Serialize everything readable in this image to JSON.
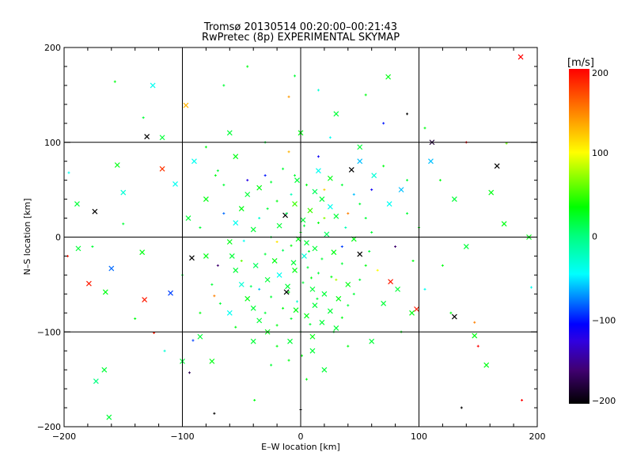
{
  "chart_data": {
    "type": "scatter",
    "title": "Tromsø 20130514 00:20:00–00:21:43",
    "subtitle": "RwPretec (8p) EXPERIMENTAL SKYMAP",
    "xlabel": "E–W location [km]",
    "ylabel": "N–S location [km]",
    "xlim": [
      -200,
      200
    ],
    "ylim": [
      -200,
      200
    ],
    "xticks": [
      -200,
      -100,
      0,
      100,
      200
    ],
    "yticks": [
      -200,
      -100,
      0,
      100,
      200
    ],
    "xtick_labels": [
      "−200",
      "−100",
      "0",
      "100",
      "200"
    ],
    "ytick_labels": [
      "−200",
      "−100",
      "0",
      "100",
      "200"
    ],
    "grid": true,
    "colorbar": {
      "label": "[m/s]",
      "range": [
        -200,
        200
      ],
      "ticks": [
        200,
        100,
        0,
        -100,
        -200
      ],
      "tick_labels": [
        "200",
        "100",
        "0",
        "−100",
        "−200"
      ],
      "colormap": [
        [
          -200,
          "#000000"
        ],
        [
          -160,
          "#400070"
        ],
        [
          -125,
          "#3000e0"
        ],
        [
          -105,
          "#0000ff"
        ],
        [
          -75,
          "#0080ff"
        ],
        [
          -45,
          "#00ffff"
        ],
        [
          0,
          "#00ff80"
        ],
        [
          35,
          "#00ff00"
        ],
        [
          100,
          "#ffff00"
        ],
        [
          150,
          "#ff8000"
        ],
        [
          200,
          "#ff0000"
        ]
      ]
    },
    "marker_legend": {
      "0": "small plus",
      "1": "cross"
    },
    "point_fields": [
      "x_km",
      "y_km",
      "velocity_ms",
      "marker"
    ],
    "points": [
      [
        186,
        190,
        200,
        1
      ],
      [
        -130,
        106,
        -200,
        1
      ],
      [
        -117,
        72,
        180,
        1
      ],
      [
        -174,
        27,
        -200,
        1
      ],
      [
        -92,
        -22,
        -200,
        1
      ],
      [
        -179,
        -49,
        190,
        1
      ],
      [
        -132,
        -66,
        190,
        1
      ],
      [
        -110,
        -59,
        -90,
        1
      ],
      [
        -91,
        -109,
        -90,
        0
      ],
      [
        130,
        -84,
        -200,
        1
      ],
      [
        166,
        75,
        -200,
        1
      ],
      [
        187,
        -172,
        200,
        0
      ],
      [
        150,
        -115,
        200,
        0
      ],
      [
        76,
        -47,
        190,
        1
      ],
      [
        98,
        -76,
        190,
        1
      ],
      [
        43,
        71,
        -200,
        1
      ],
      [
        -13,
        23,
        -200,
        1
      ],
      [
        -12,
        -58,
        -200,
        1
      ],
      [
        50,
        -18,
        -200,
        1
      ],
      [
        0,
        -182,
        -200,
        0
      ],
      [
        136,
        -180,
        -200,
        0
      ],
      [
        -162,
        -190,
        20,
        1
      ],
      [
        -166,
        -140,
        20,
        1
      ],
      [
        -173,
        -152,
        0,
        1
      ],
      [
        74,
        169,
        30,
        1
      ],
      [
        -117,
        105,
        20,
        1
      ],
      [
        -97,
        139,
        130,
        1
      ],
      [
        111,
        100,
        -180,
        1
      ],
      [
        174,
        99,
        60,
        0
      ],
      [
        193,
        0,
        30,
        1
      ],
      [
        -196,
        68,
        -40,
        0
      ],
      [
        -197,
        -20,
        190,
        0
      ],
      [
        -124,
        -101,
        190,
        0
      ],
      [
        -189,
        35,
        20,
        1
      ],
      [
        -155,
        76,
        30,
        1
      ],
      [
        -150,
        47,
        -30,
        1
      ],
      [
        -150,
        14,
        20,
        0
      ],
      [
        -134,
        -16,
        30,
        1
      ],
      [
        -106,
        56,
        -40,
        1
      ],
      [
        -73,
        -62,
        150,
        0
      ],
      [
        -75,
        -131,
        30,
        1
      ],
      [
        -100,
        -131,
        20,
        1
      ],
      [
        -39,
        -172,
        30,
        0
      ],
      [
        -94,
        -143,
        -170,
        0
      ],
      [
        -73,
        -186,
        -200,
        0
      ],
      [
        147,
        -104,
        30,
        1
      ],
      [
        157,
        -135,
        30,
        1
      ],
      [
        161,
        47,
        30,
        1
      ],
      [
        172,
        14,
        30,
        1
      ],
      [
        195,
        -53,
        -40,
        0
      ],
      [
        127,
        -80,
        30,
        0
      ],
      [
        94,
        -80,
        30,
        1
      ],
      [
        147,
        -90,
        150,
        0
      ],
      [
        -188,
        -12,
        20,
        1
      ],
      [
        -160,
        -33,
        -80,
        1
      ],
      [
        -176,
        -10,
        20,
        0
      ],
      [
        -165,
        -58,
        30,
        1
      ],
      [
        -140,
        -86,
        30,
        0
      ],
      [
        -115,
        -120,
        -30,
        0
      ],
      [
        -85,
        -105,
        20,
        1
      ],
      [
        -157,
        164,
        30,
        0
      ],
      [
        -133,
        126,
        20,
        0
      ],
      [
        -125,
        160,
        -40,
        1
      ],
      [
        -65,
        160,
        20,
        0
      ],
      [
        -45,
        180,
        30,
        0
      ],
      [
        -10,
        148,
        140,
        0
      ],
      [
        15,
        155,
        -30,
        0
      ],
      [
        30,
        130,
        20,
        1
      ],
      [
        55,
        150,
        30,
        0
      ],
      [
        70,
        120,
        -100,
        0
      ],
      [
        90,
        130,
        -200,
        0
      ],
      [
        105,
        115,
        30,
        0
      ],
      [
        140,
        100,
        200,
        0
      ],
      [
        -60,
        110,
        20,
        1
      ],
      [
        -80,
        95,
        30,
        0
      ],
      [
        -90,
        80,
        -40,
        1
      ],
      [
        -70,
        70,
        20,
        0
      ],
      [
        118,
        60,
        30,
        0
      ],
      [
        130,
        40,
        20,
        1
      ],
      [
        110,
        80,
        -60,
        1
      ],
      [
        100,
        10,
        30,
        0
      ],
      [
        140,
        -10,
        20,
        1
      ],
      [
        120,
        -30,
        30,
        0
      ],
      [
        105,
        -55,
        -40,
        0
      ],
      [
        85,
        -100,
        30,
        0
      ],
      [
        60,
        -110,
        20,
        1
      ],
      [
        40,
        -115,
        30,
        0
      ],
      [
        10,
        -120,
        20,
        1
      ],
      [
        -20,
        -115,
        30,
        0
      ],
      [
        -40,
        -110,
        20,
        1
      ],
      [
        -55,
        -95,
        30,
        0
      ],
      [
        -60,
        -80,
        -40,
        1
      ],
      [
        -75,
        -50,
        20,
        0
      ],
      [
        -80,
        -20,
        30,
        1
      ],
      [
        -85,
        10,
        20,
        0
      ],
      [
        -80,
        40,
        30,
        1
      ],
      [
        -65,
        55,
        20,
        0
      ],
      [
        -55,
        85,
        30,
        1
      ],
      [
        -30,
        100,
        20,
        0
      ],
      [
        0,
        110,
        30,
        1
      ],
      [
        25,
        105,
        -40,
        0
      ],
      [
        50,
        95,
        20,
        1
      ],
      [
        70,
        75,
        30,
        0
      ],
      [
        85,
        50,
        -60,
        1
      ],
      [
        90,
        25,
        20,
        0
      ],
      [
        -10,
        -130,
        30,
        0
      ],
      [
        20,
        -140,
        20,
        1
      ],
      [
        -25,
        -135,
        20,
        0
      ],
      [
        5,
        -150,
        30,
        0
      ],
      [
        -5,
        170,
        20,
        0
      ],
      [
        -3,
        60,
        20,
        1
      ],
      [
        5,
        55,
        30,
        0
      ],
      [
        12,
        48,
        10,
        1
      ],
      [
        -8,
        45,
        -20,
        0
      ],
      [
        18,
        40,
        20,
        1
      ],
      [
        -20,
        38,
        30,
        0
      ],
      [
        25,
        32,
        -40,
        1
      ],
      [
        -28,
        30,
        20,
        0
      ],
      [
        8,
        28,
        50,
        1
      ],
      [
        -12,
        25,
        10,
        0
      ],
      [
        30,
        22,
        20,
        1
      ],
      [
        -35,
        20,
        -30,
        0
      ],
      [
        2,
        18,
        20,
        1
      ],
      [
        15,
        15,
        30,
        0
      ],
      [
        -18,
        12,
        20,
        1
      ],
      [
        38,
        10,
        -20,
        0
      ],
      [
        -40,
        8,
        20,
        1
      ],
      [
        0,
        5,
        30,
        0
      ],
      [
        22,
        3,
        10,
        1
      ],
      [
        -25,
        0,
        20,
        0
      ],
      [
        45,
        -2,
        30,
        1
      ],
      [
        -48,
        -4,
        -40,
        0
      ],
      [
        5,
        -6,
        20,
        1
      ],
      [
        -8,
        -9,
        30,
        0
      ],
      [
        12,
        -12,
        20,
        1
      ],
      [
        -15,
        -14,
        10,
        0
      ],
      [
        28,
        -16,
        30,
        1
      ],
      [
        -30,
        -18,
        20,
        0
      ],
      [
        3,
        -20,
        -30,
        1
      ],
      [
        18,
        -23,
        20,
        0
      ],
      [
        -22,
        -25,
        30,
        1
      ],
      [
        35,
        -28,
        20,
        0
      ],
      [
        -38,
        -30,
        10,
        1
      ],
      [
        6,
        -32,
        20,
        0
      ],
      [
        -5,
        -35,
        30,
        1
      ],
      [
        15,
        -38,
        20,
        0
      ],
      [
        -18,
        -40,
        -40,
        1
      ],
      [
        26,
        -42,
        30,
        0
      ],
      [
        -28,
        -45,
        20,
        1
      ],
      [
        2,
        -48,
        20,
        0
      ],
      [
        40,
        -50,
        30,
        1
      ],
      [
        -42,
        -52,
        10,
        0
      ],
      [
        10,
        -55,
        20,
        1
      ],
      [
        -10,
        -58,
        30,
        0
      ],
      [
        20,
        -60,
        20,
        1
      ],
      [
        -25,
        -63,
        20,
        0
      ],
      [
        32,
        -65,
        30,
        1
      ],
      [
        -3,
        -68,
        -30,
        0
      ],
      [
        12,
        -72,
        20,
        1
      ],
      [
        -15,
        -75,
        30,
        0
      ],
      [
        25,
        -78,
        20,
        1
      ],
      [
        -30,
        -80,
        20,
        0
      ],
      [
        5,
        -83,
        30,
        1
      ],
      [
        -8,
        -86,
        20,
        0
      ],
      [
        18,
        -90,
        20,
        1
      ],
      [
        -20,
        -93,
        30,
        0
      ],
      [
        30,
        -96,
        20,
        1
      ],
      [
        0,
        -100,
        20,
        0
      ],
      [
        10,
        -105,
        30,
        1
      ],
      [
        -5,
        65,
        20,
        0
      ],
      [
        15,
        70,
        -40,
        1
      ],
      [
        -15,
        72,
        20,
        0
      ],
      [
        25,
        62,
        30,
        1
      ],
      [
        -25,
        58,
        20,
        0
      ],
      [
        35,
        55,
        20,
        0
      ],
      [
        -35,
        52,
        30,
        1
      ],
      [
        45,
        45,
        -60,
        0
      ],
      [
        -45,
        45,
        20,
        1
      ],
      [
        50,
        35,
        20,
        0
      ],
      [
        -50,
        30,
        30,
        1
      ],
      [
        55,
        20,
        20,
        0
      ],
      [
        -55,
        15,
        -40,
        1
      ],
      [
        60,
        5,
        20,
        0
      ],
      [
        -60,
        -5,
        30,
        1
      ],
      [
        58,
        -15,
        20,
        0
      ],
      [
        -58,
        -20,
        20,
        1
      ],
      [
        55,
        -30,
        30,
        0
      ],
      [
        -55,
        -35,
        20,
        1
      ],
      [
        50,
        -45,
        20,
        0
      ],
      [
        -50,
        -50,
        -30,
        1
      ],
      [
        45,
        -60,
        20,
        0
      ],
      [
        -45,
        -65,
        30,
        1
      ],
      [
        40,
        -72,
        20,
        0
      ],
      [
        -40,
        -75,
        20,
        1
      ],
      [
        35,
        -85,
        30,
        0
      ],
      [
        -35,
        -88,
        20,
        1
      ],
      [
        28,
        -100,
        20,
        0
      ],
      [
        -28,
        -100,
        30,
        1
      ],
      [
        3,
        12,
        20,
        0
      ],
      [
        -2,
        -2,
        30,
        1
      ],
      [
        7,
        -15,
        20,
        0
      ],
      [
        -6,
        -27,
        20,
        1
      ],
      [
        9,
        -43,
        30,
        0
      ],
      [
        -11,
        -52,
        20,
        1
      ],
      [
        14,
        -65,
        20,
        0
      ],
      [
        -4,
        -77,
        30,
        1
      ],
      [
        8,
        -92,
        20,
        0
      ],
      [
        -9,
        -110,
        20,
        1
      ],
      [
        1,
        -125,
        30,
        0
      ],
      [
        20,
        50,
        120,
        0
      ],
      [
        -30,
        65,
        -100,
        0
      ],
      [
        40,
        25,
        150,
        0
      ],
      [
        -20,
        -5,
        110,
        0
      ],
      [
        60,
        50,
        -110,
        0
      ],
      [
        35,
        -10,
        -90,
        0
      ],
      [
        -45,
        60,
        -120,
        0
      ],
      [
        65,
        -35,
        100,
        0
      ],
      [
        -65,
        25,
        -80,
        0
      ],
      [
        15,
        85,
        -110,
        0
      ],
      [
        50,
        80,
        -60,
        1
      ],
      [
        75,
        35,
        -40,
        1
      ],
      [
        -35,
        -55,
        -60,
        0
      ],
      [
        80,
        -10,
        -160,
        0
      ],
      [
        -70,
        -30,
        -160,
        0
      ],
      [
        -10,
        90,
        130,
        0
      ],
      [
        30,
        -45,
        80,
        0
      ],
      [
        -50,
        -25,
        60,
        0
      ],
      [
        20,
        20,
        70,
        0
      ],
      [
        -5,
        35,
        50,
        1
      ],
      [
        62,
        65,
        -30,
        1
      ],
      [
        70,
        -70,
        20,
        1
      ],
      [
        -68,
        -70,
        20,
        0
      ],
      [
        -72,
        65,
        30,
        0
      ],
      [
        82,
        -55,
        20,
        1
      ],
      [
        -85,
        -80,
        30,
        0
      ],
      [
        90,
        60,
        20,
        0
      ],
      [
        -95,
        20,
        20,
        1
      ],
      [
        95,
        -25,
        30,
        0
      ],
      [
        -100,
        -40,
        20,
        0
      ]
    ]
  }
}
